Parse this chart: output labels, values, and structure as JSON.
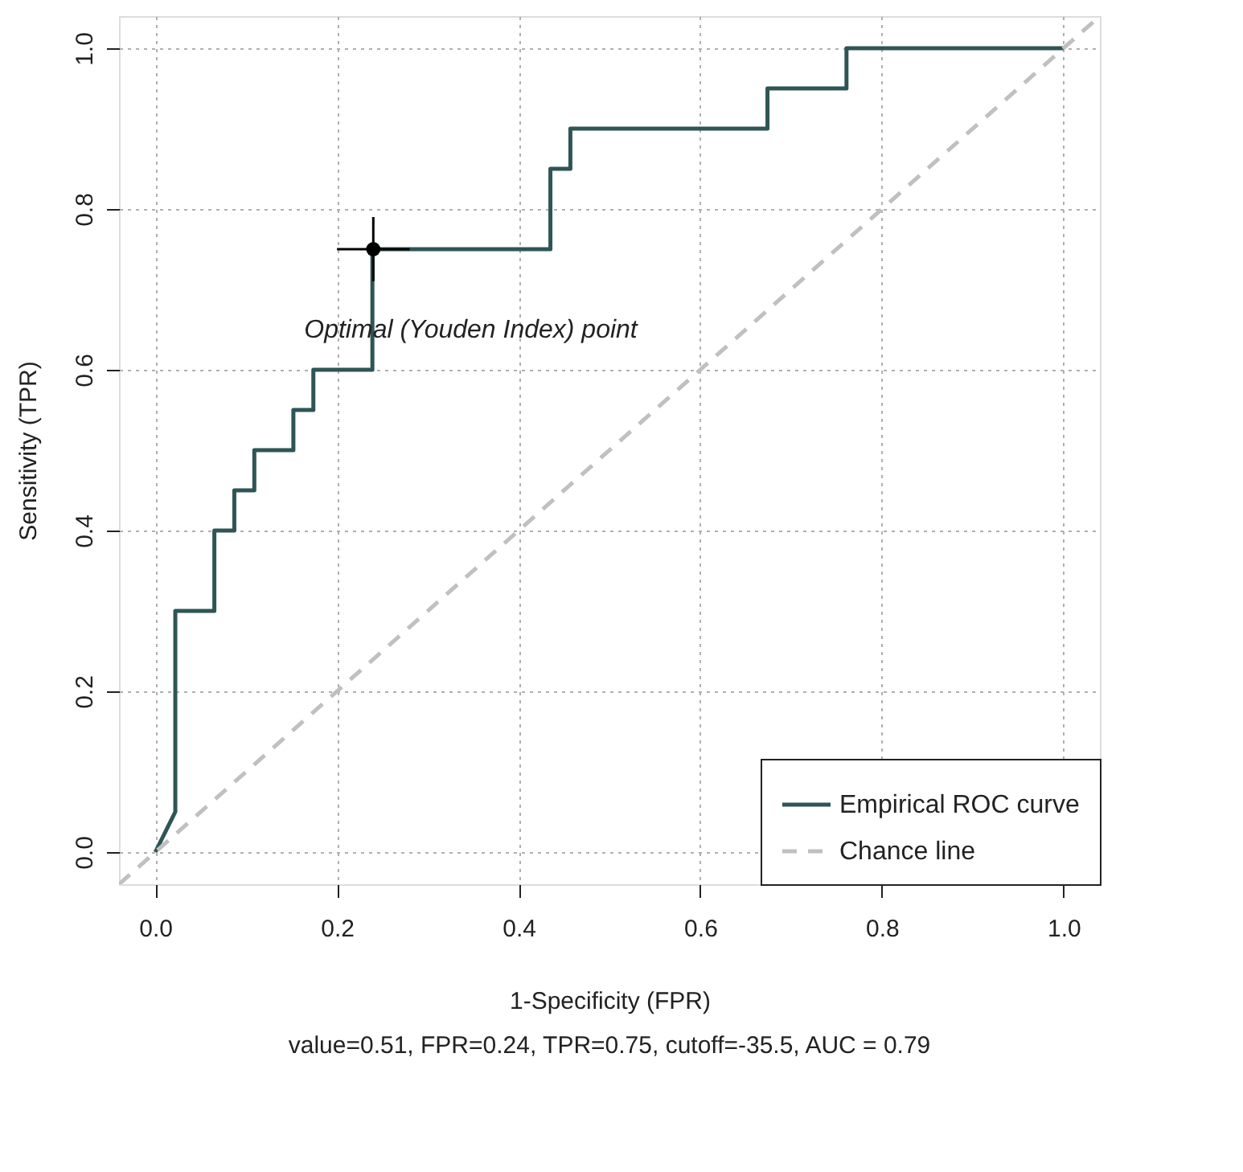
{
  "chart_data": {
    "type": "line",
    "xlabel": "1-Specificity (FPR)",
    "ylabel": "Sensitivity (TPR)",
    "xlim": [
      -0.04,
      1.04
    ],
    "ylim": [
      -0.04,
      1.04
    ],
    "xticks": [
      {
        "value": 0,
        "label": "0.0"
      },
      0.2,
      0.4,
      0.6,
      0.8,
      {
        "value": 1,
        "label": "1.0"
      }
    ],
    "yticks": [
      {
        "value": 0,
        "label": "0.0"
      },
      0.2,
      0.4,
      0.6,
      0.8,
      {
        "value": 1,
        "label": "1.0"
      }
    ],
    "grid": true,
    "legend": "bottom right",
    "series": [
      {
        "name": "Empirical ROC curve",
        "color": "#2f5555",
        "line_style": "solid",
        "x": [
          0,
          0.022,
          0.022,
          0.065,
          0.065,
          0.087,
          0.087,
          0.109,
          0.109,
          0.152,
          0.152,
          0.174,
          0.174,
          0.239,
          0.239,
          0.435,
          0.435,
          0.457,
          0.457,
          0.674,
          0.674,
          0.761,
          0.761,
          1
        ],
        "values": [
          0,
          0.05,
          0.3,
          0.3,
          0.4,
          0.4,
          0.45,
          0.45,
          0.5,
          0.5,
          0.55,
          0.55,
          0.6,
          0.6,
          0.75,
          0.75,
          0.85,
          0.85,
          0.9,
          0.9,
          0.95,
          0.95,
          1,
          1
        ]
      },
      {
        "name": "Chance line",
        "color": "#c0c0c0",
        "line_style": "dashed",
        "x": [
          -0.04,
          1.04
        ],
        "values": [
          -0.04,
          1.04
        ]
      },
      {
        "type": "scatter",
        "color": "#000000",
        "marker": "circle",
        "x": [
          0.24
        ],
        "values": [
          0.75
        ],
        "errors": [
          [
            0.71,
            0.79
          ]
        ],
        "xerrors": [
          [
            0.2,
            0.28
          ]
        ]
      }
    ],
    "annotations": [
      {
        "text": "Optimal (Youden Index) point",
        "x": 0.24,
        "y": 0.75
      },
      "value=0.51, FPR=0.24, TPR=0.75, cutoff=-35.5, AUC = 0.79"
    ]
  }
}
